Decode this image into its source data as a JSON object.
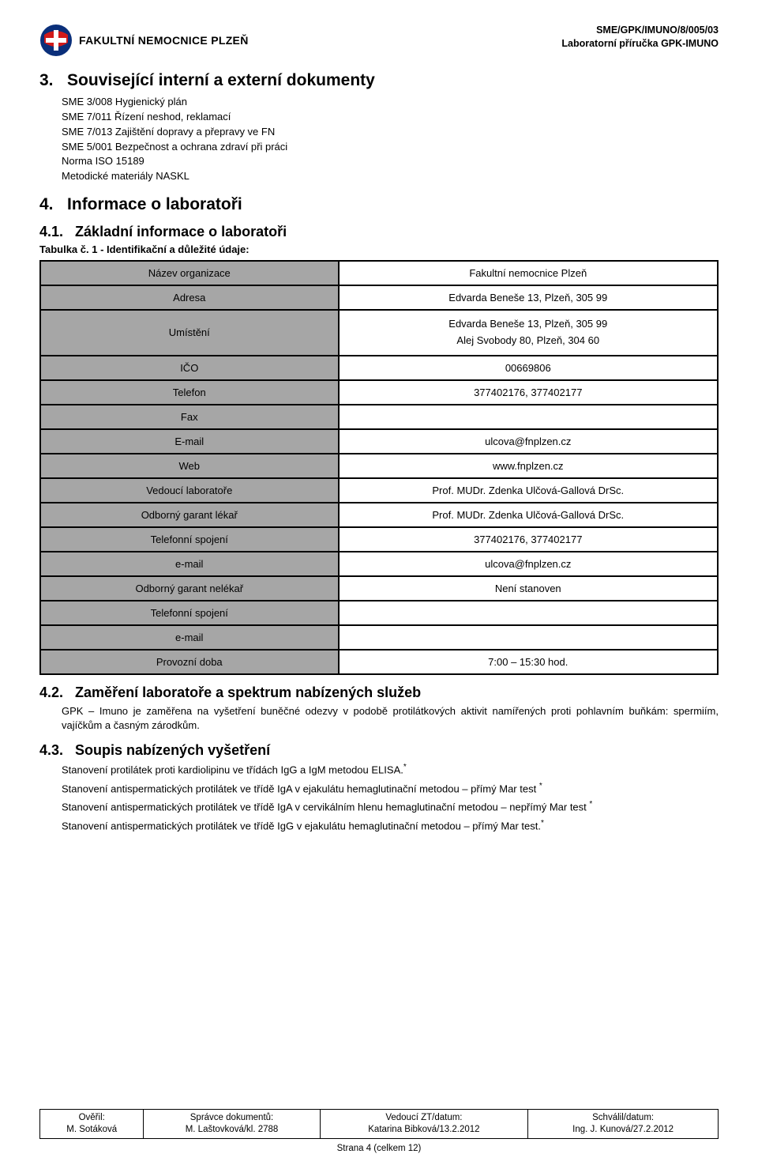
{
  "header": {
    "org_name": "FAKULTNÍ NEMOCNICE PLZEŇ",
    "doc_code": "SME/GPK/IMUNO/8/005/03",
    "doc_title": "Laboratorní příručka GPK-IMUNO",
    "logo_colors": {
      "bg": "#0a2f7a",
      "red": "#d11a1a",
      "cross": "#ffffff"
    }
  },
  "s3": {
    "num": "3.",
    "title": "Související interní a externí dokumenty",
    "items": [
      "SME 3/008 Hygienický plán",
      "SME 7/011 Řízení neshod, reklamací",
      "SME 7/013 Zajištění dopravy a přepravy ve FN",
      "SME 5/001 Bezpečnost a ochrana zdraví při práci",
      "Norma ISO 15189",
      "Metodické materiály NASKL"
    ]
  },
  "s4": {
    "num": "4.",
    "title": "Informace o laboratoři"
  },
  "s41": {
    "num": "4.1.",
    "title": "Základní informace o laboratoři",
    "caption": "Tabulka č. 1 - Identifikační a důležité údaje:"
  },
  "id_table": {
    "rows": [
      {
        "key": "Název organizace",
        "val": "Fakultní nemocnice Plzeň"
      },
      {
        "key": "Adresa",
        "val": "Edvarda Beneše 13, Plzeň, 305 99"
      },
      {
        "key": "Umístění",
        "val_line1": "Edvarda Beneše 13, Plzeň, 305 99",
        "val_line2": "Alej Svobody 80, Plzeň, 304 60",
        "multi": true
      },
      {
        "key": "IČO",
        "val": "00669806"
      },
      {
        "key": "Telefon",
        "val": "377402176, 377402177"
      },
      {
        "key": "Fax",
        "val": ""
      },
      {
        "key": "E-mail",
        "val": "ulcova@fnplzen.cz"
      },
      {
        "key": "Web",
        "val": "www.fnplzen.cz"
      },
      {
        "key": "Vedoucí laboratoře",
        "val": "Prof. MUDr. Zdenka Ulčová-Gallová DrSc."
      },
      {
        "key": "Odborný garant lékař",
        "val": "Prof. MUDr. Zdenka Ulčová-Gallová DrSc."
      },
      {
        "key": "Telefonní spojení",
        "val": "377402176, 377402177"
      },
      {
        "key": "e-mail",
        "val": "ulcova@fnplzen.cz"
      },
      {
        "key": "Odborný garant nelékař",
        "val": "Není stanoven"
      },
      {
        "key": "Telefonní spojení",
        "val": ""
      },
      {
        "key": "e-mail",
        "val": ""
      },
      {
        "key": "Provozní doba",
        "val": "7:00 – 15:30 hod."
      }
    ]
  },
  "s42": {
    "num": "4.2.",
    "title": "Zaměření laboratoře a spektrum nabízených služeb",
    "text": "GPK – Imuno je zaměřena na vyšetření buněčné odezvy v podobě protilátkových aktivit namířených proti pohlavním buňkám: spermiím, vajíčkům a časným zárodkům."
  },
  "s43": {
    "num": "4.3.",
    "title": "Soupis nabízených vyšetření",
    "lines": [
      "Stanovení protilátek proti kardiolipinu ve třídách IgG a IgM metodou ELISA.",
      "Stanovení antispermatických protilátek ve třídě IgA v ejakulátu hemaglutinační metodou – přímý Mar test",
      "Stanovení antispermatických protilátek ve třídě IgA v cervikálním hlenu hemaglutinační metodou – nepřímý Mar test",
      "Stanovení antispermatických protilátek ve třídě IgG v ejakulátu hemaglutinační metodou – přímý Mar test."
    ],
    "sup": "*"
  },
  "footer": {
    "cells": {
      "c1_l1": "Ověřil:",
      "c1_l2": "M. Sotáková",
      "c2_l1": "Správce dokumentů:",
      "c2_l2": "M. Laštovková/kl. 2788",
      "c3_l1": "Vedoucí ZT/datum:",
      "c3_l2": "Katarina Bibková/13.2.2012",
      "c4_l1": "Schválil/datum:",
      "c4_l2": "Ing. J. Kunová/27.2.2012"
    },
    "page": "Strana 4 (celkem 12)"
  }
}
